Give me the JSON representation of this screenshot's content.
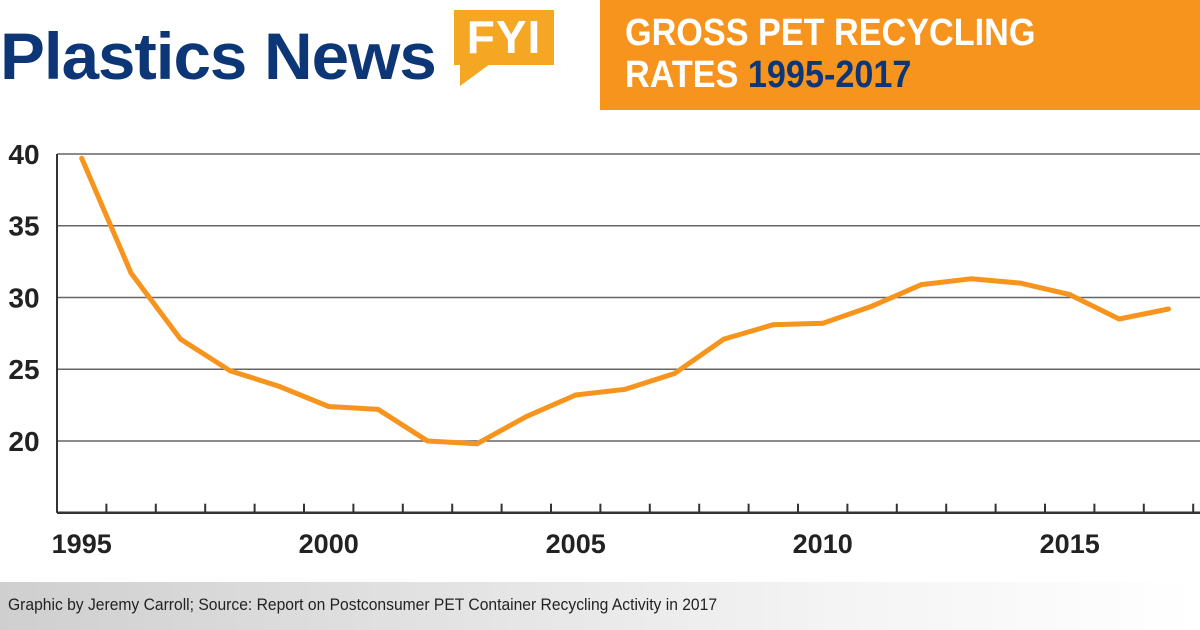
{
  "header": {
    "logo_text": "Plastics News",
    "logo_badge": "FYI",
    "title_line1": "GROSS PET RECYCLING",
    "title_line2": "RATES",
    "title_years": "1995-2017"
  },
  "footer": {
    "credit": "Graphic by Jeremy Carroll; Source: Report on Postconsumer PET Container Recycling Activity in 2017"
  },
  "colors": {
    "line": "#f7941d",
    "navy": "#0d3677",
    "accent": "#f7941d",
    "badge": "#f5a623"
  },
  "chart_data": {
    "type": "line",
    "title": "GROSS PET RECYCLING RATES 1995-2017",
    "xlabel": "",
    "ylabel": "",
    "x": [
      1995,
      1996,
      1997,
      1998,
      1999,
      2000,
      2001,
      2002,
      2003,
      2004,
      2005,
      2006,
      2007,
      2008,
      2009,
      2010,
      2011,
      2012,
      2013,
      2014,
      2015,
      2016,
      2017
    ],
    "series": [
      {
        "values": [
          39.7,
          31.7,
          27.1,
          24.9,
          23.8,
          22.4,
          22.2,
          20.0,
          19.8,
          21.7,
          23.2,
          23.6,
          24.7,
          27.1,
          28.1,
          28.2,
          29.4,
          30.9,
          31.3,
          31.0,
          30.2,
          28.5,
          29.2
        ]
      }
    ],
    "ylim": [
      15,
      40
    ],
    "yticks": [
      20,
      25,
      30,
      35,
      40
    ],
    "xtick_labels": [
      "1995",
      "2000",
      "2005",
      "2010",
      "2015"
    ],
    "grid": true,
    "legend": "none"
  }
}
